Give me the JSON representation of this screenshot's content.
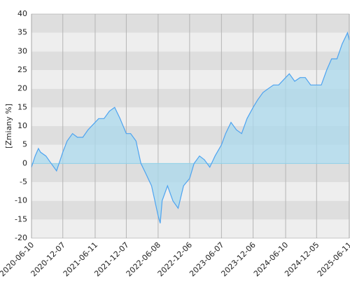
{
  "chart_data": {
    "type": "area",
    "y_label": "[Zmiany %]",
    "x": [
      "2020-06-10",
      "2020-07-01",
      "2020-07-20",
      "2020-08-01",
      "2020-09-01",
      "2020-10-01",
      "2020-11-01",
      "2020-12-07",
      "2021-01-01",
      "2021-02-01",
      "2021-03-01",
      "2021-04-01",
      "2021-05-01",
      "2021-06-11",
      "2021-07-01",
      "2021-08-01",
      "2021-09-01",
      "2021-10-01",
      "2021-11-01",
      "2021-12-07",
      "2022-01-01",
      "2022-02-01",
      "2022-03-01",
      "2022-04-01",
      "2022-05-01",
      "2022-06-08",
      "2022-06-20",
      "2022-07-01",
      "2022-08-01",
      "2022-09-01",
      "2022-10-01",
      "2022-11-01",
      "2022-12-06",
      "2023-01-01",
      "2023-02-01",
      "2023-03-01",
      "2023-04-01",
      "2023-05-01",
      "2023-06-07",
      "2023-07-01",
      "2023-08-01",
      "2023-09-01",
      "2023-10-01",
      "2023-11-01",
      "2023-12-06",
      "2024-01-01",
      "2024-02-01",
      "2024-03-01",
      "2024-04-01",
      "2024-05-01",
      "2024-06-10",
      "2024-07-01",
      "2024-08-01",
      "2024-09-01",
      "2024-10-01",
      "2024-11-01",
      "2024-12-05",
      "2025-01-01",
      "2025-02-01",
      "2025-03-01",
      "2025-04-01",
      "2025-05-01",
      "2025-06-01",
      "2025-06-11"
    ],
    "values": [
      -1,
      2,
      4,
      3,
      2,
      0,
      -2,
      3,
      6,
      8,
      7,
      7,
      9,
      11,
      12,
      12,
      14,
      15,
      12,
      8,
      8,
      6,
      0,
      -3,
      -6,
      -14,
      -16,
      -10,
      -6,
      -10,
      -12,
      -6,
      -4,
      0,
      2,
      1,
      -1,
      2,
      5,
      8,
      11,
      9,
      8,
      12,
      15,
      17,
      19,
      20,
      21,
      21,
      23,
      24,
      22,
      23,
      23,
      21,
      21,
      21,
      25,
      28,
      28,
      32,
      35,
      33
    ],
    "color": "#4da3f0",
    "fill_color": "#a9d8ec",
    "xlim": [
      "2020-06-10",
      "2025-06-11"
    ],
    "xticks": [
      "2020-06-10",
      "2020-12-07",
      "2021-06-11",
      "2021-12-07",
      "2022-06-08",
      "2022-12-06",
      "2023-06-07",
      "2023-12-06",
      "2024-06-10",
      "2024-12-05",
      "2025-06-11"
    ],
    "ylim": [
      -20,
      40
    ],
    "yticks": [
      -20,
      -15,
      -10,
      -5,
      0,
      5,
      10,
      15,
      20,
      25,
      30,
      35,
      40
    ],
    "grid": true
  }
}
